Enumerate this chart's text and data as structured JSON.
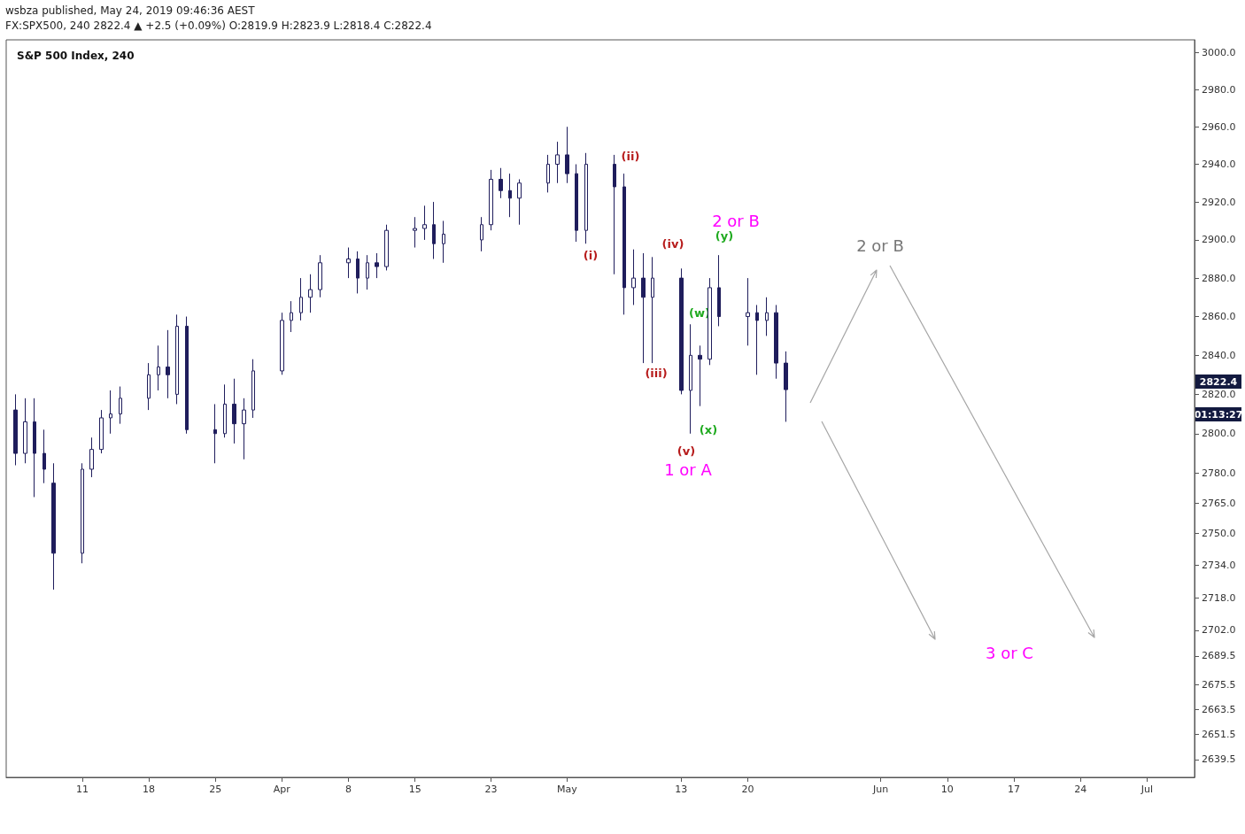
{
  "chart_data": {
    "type": "candlestick",
    "title": "S&P 500 Index, 240",
    "log": true,
    "xlim": [
      "2019-03-03",
      "2019-07-06"
    ],
    "xticks": [
      {
        "value": "2019-03-11",
        "label": "11"
      },
      {
        "value": "2019-03-18",
        "label": "18"
      },
      {
        "value": "2019-03-25",
        "label": "25"
      },
      {
        "value": "2019-04-01",
        "label": "Apr"
      },
      {
        "value": "2019-04-08",
        "label": "8"
      },
      {
        "value": "2019-04-15",
        "label": "15"
      },
      {
        "value": "2019-04-23",
        "label": "23"
      },
      {
        "value": "2019-05-01",
        "label": "May"
      },
      {
        "value": "2019-05-13",
        "label": "13"
      },
      {
        "value": "2019-05-20",
        "label": "20"
      },
      {
        "value": "2019-06-03",
        "label": "Jun"
      },
      {
        "value": "2019-06-10",
        "label": "10"
      },
      {
        "value": "2019-06-17",
        "label": "17"
      },
      {
        "value": "2019-06-24",
        "label": "24"
      },
      {
        "value": "2019-07-01",
        "label": "Jul"
      }
    ],
    "ylim": [
      2631,
      3007
    ],
    "yticks": [
      {
        "value": 3000,
        "label": "3000.0"
      },
      {
        "value": 2980,
        "label": "2980.0"
      },
      {
        "value": 2960,
        "label": "2960.0"
      },
      {
        "value": 2940,
        "label": "2940.0"
      },
      {
        "value": 2920,
        "label": "2920.0"
      },
      {
        "value": 2900,
        "label": "2900.0"
      },
      {
        "value": 2880,
        "label": "2880.0"
      },
      {
        "value": 2860,
        "label": "2860.0"
      },
      {
        "value": 2840,
        "label": "2840.0"
      },
      {
        "value": 2820,
        "label": "2820.0"
      },
      {
        "value": 2800,
        "label": "2800.0"
      },
      {
        "value": 2780,
        "label": "2780.0"
      },
      {
        "value": 2765,
        "label": "2765.0"
      },
      {
        "value": 2750,
        "label": "2750.0"
      },
      {
        "value": 2734,
        "label": "2734.0"
      },
      {
        "value": 2718,
        "label": "2718.0"
      },
      {
        "value": 2702,
        "label": "2702.0"
      },
      {
        "value": 2689.5,
        "label": "2689.5"
      },
      {
        "value": 2675.5,
        "label": "2675.5"
      },
      {
        "value": 2663.5,
        "label": "2663.5"
      },
      {
        "value": 2651.5,
        "label": "2651.5"
      },
      {
        "value": 2639.5,
        "label": "2639.5"
      }
    ],
    "series": [
      {
        "color": "#1f1d5c",
        "x": [
          "2019-03-04",
          "2019-03-05",
          "2019-03-06",
          "2019-03-07",
          "2019-03-08",
          "2019-03-11",
          "2019-03-12",
          "2019-03-13",
          "2019-03-14",
          "2019-03-15",
          "2019-03-18",
          "2019-03-19",
          "2019-03-20",
          "2019-03-21",
          "2019-03-22",
          "2019-03-25",
          "2019-03-26",
          "2019-03-27",
          "2019-03-28",
          "2019-03-29",
          "2019-04-01",
          "2019-04-02",
          "2019-04-03",
          "2019-04-04",
          "2019-04-05",
          "2019-04-08",
          "2019-04-09",
          "2019-04-10",
          "2019-04-11",
          "2019-04-12",
          "2019-04-15",
          "2019-04-16",
          "2019-04-17",
          "2019-04-18",
          "2019-04-22",
          "2019-04-23",
          "2019-04-24",
          "2019-04-25",
          "2019-04-26",
          "2019-04-29",
          "2019-04-30",
          "2019-05-01",
          "2019-05-02",
          "2019-05-03",
          "2019-05-06",
          "2019-05-07",
          "2019-05-08",
          "2019-05-09",
          "2019-05-10",
          "2019-05-13",
          "2019-05-14",
          "2019-05-15",
          "2019-05-16",
          "2019-05-17",
          "2019-05-20",
          "2019-05-21",
          "2019-05-22",
          "2019-05-23",
          "2019-05-24"
        ],
        "ohlc": [
          [
            2812,
            2820,
            2784,
            2790
          ],
          [
            2790,
            2818,
            2785,
            2806
          ],
          [
            2806,
            2818,
            2768,
            2790
          ],
          [
            2790,
            2802,
            2775,
            2782
          ],
          [
            2775,
            2785,
            2722,
            2740
          ],
          [
            2740,
            2785,
            2735,
            2782
          ],
          [
            2782,
            2798,
            2778,
            2792
          ],
          [
            2792,
            2812,
            2790,
            2808
          ],
          [
            2808,
            2822,
            2800,
            2810
          ],
          [
            2810,
            2824,
            2805,
            2818
          ],
          [
            2818,
            2836,
            2812,
            2830
          ],
          [
            2830,
            2845,
            2822,
            2834
          ],
          [
            2834,
            2853,
            2818,
            2830
          ],
          [
            2820,
            2861,
            2815,
            2855
          ],
          [
            2855,
            2860,
            2800,
            2802
          ],
          [
            2802,
            2815,
            2785,
            2800
          ],
          [
            2800,
            2825,
            2798,
            2815
          ],
          [
            2815,
            2828,
            2795,
            2805
          ],
          [
            2805,
            2818,
            2787,
            2812
          ],
          [
            2812,
            2838,
            2808,
            2832
          ],
          [
            2832,
            2862,
            2830,
            2858
          ],
          [
            2858,
            2868,
            2852,
            2862
          ],
          [
            2862,
            2880,
            2858,
            2870
          ],
          [
            2870,
            2882,
            2862,
            2874
          ],
          [
            2874,
            2892,
            2870,
            2888
          ],
          [
            2888,
            2896,
            2880,
            2890
          ],
          [
            2890,
            2894,
            2872,
            2880
          ],
          [
            2880,
            2892,
            2874,
            2888
          ],
          [
            2888,
            2893,
            2880,
            2886
          ],
          [
            2886,
            2908,
            2884,
            2905
          ],
          [
            2905,
            2912,
            2896,
            2906
          ],
          [
            2906,
            2918,
            2900,
            2908
          ],
          [
            2908,
            2920,
            2890,
            2898
          ],
          [
            2898,
            2910,
            2888,
            2903
          ],
          [
            2900,
            2912,
            2894,
            2908
          ],
          [
            2908,
            2937,
            2905,
            2932
          ],
          [
            2932,
            2938,
            2922,
            2926
          ],
          [
            2926,
            2935,
            2912,
            2922
          ],
          [
            2922,
            2932,
            2908,
            2930
          ],
          [
            2930,
            2945,
            2925,
            2940
          ],
          [
            2940,
            2952,
            2930,
            2945
          ],
          [
            2945,
            2960,
            2930,
            2935
          ],
          [
            2935,
            2940,
            2899,
            2905
          ],
          [
            2905,
            2946,
            2898,
            2940
          ],
          [
            2940,
            2945,
            2882,
            2928
          ],
          [
            2928,
            2935,
            2861,
            2875
          ],
          [
            2875,
            2895,
            2866,
            2880
          ],
          [
            2880,
            2893,
            2836,
            2870
          ],
          [
            2870,
            2891,
            2836,
            2880
          ],
          [
            2880,
            2885,
            2820,
            2822
          ],
          [
            2822,
            2856,
            2800,
            2840
          ],
          [
            2840,
            2845,
            2814,
            2838
          ],
          [
            2838,
            2880,
            2835,
            2875
          ],
          [
            2875,
            2892,
            2855,
            2860
          ],
          [
            2860,
            2880,
            2845,
            2862
          ],
          [
            2862,
            2866,
            2830,
            2858
          ],
          [
            2858,
            2870,
            2850,
            2862
          ],
          [
            2862,
            2866,
            2828,
            2836
          ],
          [
            2836,
            2842,
            2806,
            2822.4
          ]
        ]
      }
    ],
    "annotations": [
      "wsbza published, May 24, 2019 09:46:36 AEST",
      "FX:SPX500, 240  2822.4 ▲ +2.5 (+0.09%) O:2819.9 H:2823.9 L:2818.4 C:2822.4",
      "2822.4",
      "01:13:27",
      "(i)",
      "(ii)",
      "(iii)",
      "(iv)",
      "(v)",
      "1 or A",
      "(w)",
      "(x)",
      "(y)",
      "2 or B",
      "2 or B",
      "3 or C"
    ]
  }
}
